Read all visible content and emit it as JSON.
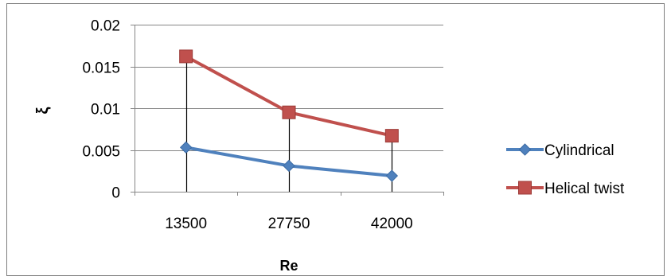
{
  "chart_data": {
    "type": "line",
    "title": "",
    "xlabel": "Re",
    "ylabel": "ξ",
    "categories": [
      "13500",
      "27750",
      "42000"
    ],
    "ylim": [
      0,
      0.02
    ],
    "yticks": [
      "0",
      "0.005",
      "0.01",
      "0.015",
      "0.02"
    ],
    "ytick_values": [
      0,
      0.005,
      0.01,
      0.015,
      0.02
    ],
    "grid": true,
    "legend_position": "right",
    "series": [
      {
        "name": "Cylindrical",
        "values": [
          0.0053,
          0.0031,
          0.0019
        ],
        "color": "#4F81BD",
        "marker": "diamond"
      },
      {
        "name": "Helical twist",
        "values": [
          0.0162,
          0.0095,
          0.0067
        ],
        "color": "#C0504D",
        "marker": "square"
      }
    ],
    "drop_lines": true
  }
}
